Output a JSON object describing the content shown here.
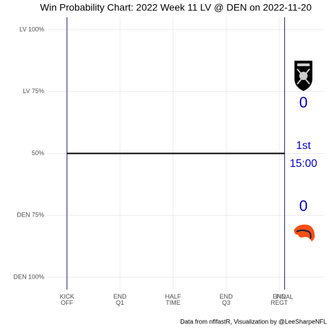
{
  "chart_data": {
    "type": "line",
    "title": "Win Probability Chart: 2022 Week 11 LV @ DEN on 2022-11-20",
    "caption": "Data from nflfastR, Visualization by @LeeSharpeNFL",
    "x": [
      0,
      3690
    ],
    "series": [
      {
        "name": "Win Probability",
        "color": "#000000",
        "values": [
          50,
          50
        ]
      }
    ],
    "xlim": [
      -340,
      4360
    ],
    "ylim": [
      -5,
      105
    ],
    "xticks": [
      {
        "value": 0,
        "label": "KICK\nOFF"
      },
      {
        "value": 900,
        "label": "END\nQ1"
      },
      {
        "value": 1800,
        "label": "HALF\nTIME"
      },
      {
        "value": 2700,
        "label": "END\nQ3"
      },
      {
        "value": 3600,
        "label": "END\nREGT"
      },
      {
        "value": 3690,
        "label": "FINAL"
      }
    ],
    "yticks": [
      {
        "value": 100,
        "label": "LV 100%"
      },
      {
        "value": 75,
        "label": "LV 75%"
      },
      {
        "value": 50,
        "label": "50%"
      },
      {
        "value": 25,
        "label": "DEN 75%"
      },
      {
        "value": 0,
        "label": "DEN 100%"
      }
    ],
    "grid": true,
    "annotations": {
      "lv_score": 0,
      "period": "1st",
      "clock": "15:00",
      "den_score": 0,
      "color": "#0000cc"
    }
  }
}
